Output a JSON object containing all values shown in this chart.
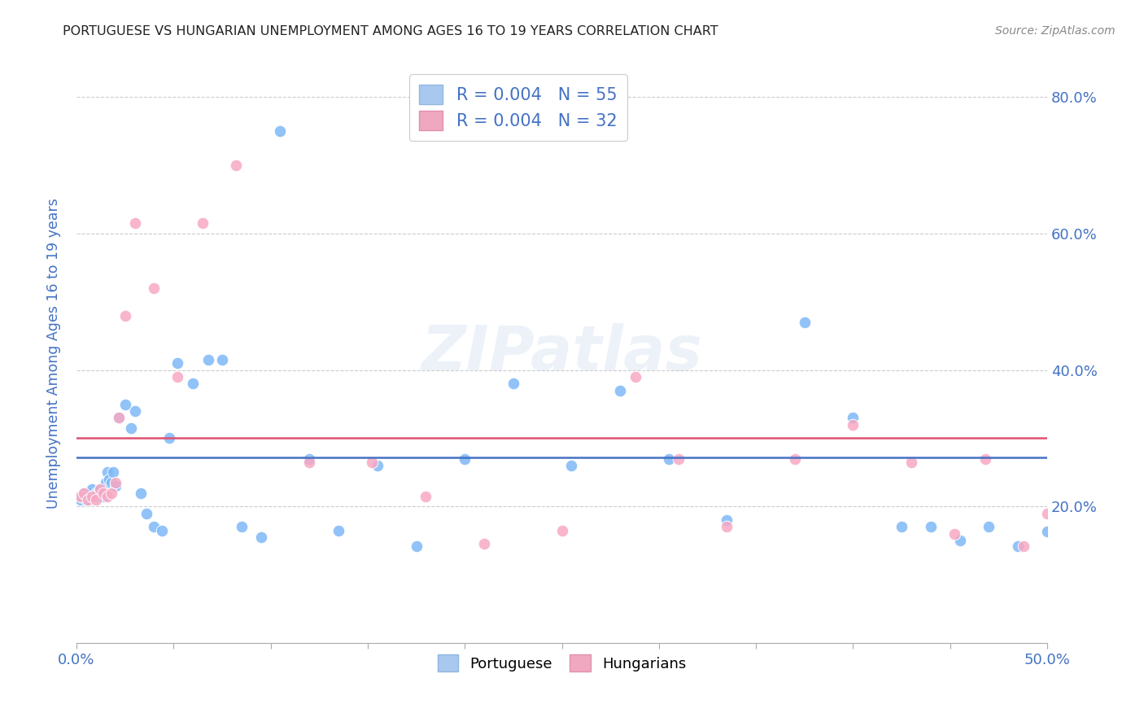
{
  "title": "PORTUGUESE VS HUNGARIAN UNEMPLOYMENT AMONG AGES 16 TO 19 YEARS CORRELATION CHART",
  "source": "Source: ZipAtlas.com",
  "ylabel": "Unemployment Among Ages 16 to 19 years",
  "xlim": [
    0.0,
    0.5
  ],
  "ylim": [
    0.0,
    0.85
  ],
  "legend_label1": "R = 0.004   N = 55",
  "legend_label2": "R = 0.004   N = 32",
  "legend_color1": "#a8c8f0",
  "legend_color2": "#f0a8c0",
  "dot_color_portuguese": "#7eb8f7",
  "dot_color_hungarian": "#f7a8c4",
  "line_color_portuguese": "#4472c4",
  "line_color_hungarian": "#e05070",
  "background_color": "#ffffff",
  "grid_color": "#cccccc",
  "title_color": "#222222",
  "source_color": "#888888",
  "axis_label_color": "#4472c4",
  "port_line_y": 0.272,
  "hung_line_y": 0.3,
  "portuguese_x": [
    0.002,
    0.003,
    0.004,
    0.005,
    0.006,
    0.007,
    0.008,
    0.008,
    0.009,
    0.01,
    0.01,
    0.011,
    0.012,
    0.013,
    0.014,
    0.015,
    0.016,
    0.017,
    0.018,
    0.019,
    0.02,
    0.022,
    0.025,
    0.028,
    0.03,
    0.033,
    0.036,
    0.04,
    0.044,
    0.048,
    0.052,
    0.06,
    0.068,
    0.075,
    0.085,
    0.095,
    0.105,
    0.12,
    0.135,
    0.155,
    0.175,
    0.2,
    0.225,
    0.255,
    0.28,
    0.305,
    0.335,
    0.375,
    0.4,
    0.425,
    0.44,
    0.455,
    0.47,
    0.485,
    0.5
  ],
  "portuguese_y": [
    0.21,
    0.215,
    0.22,
    0.21,
    0.215,
    0.22,
    0.215,
    0.225,
    0.215,
    0.22,
    0.215,
    0.22,
    0.225,
    0.22,
    0.215,
    0.235,
    0.25,
    0.24,
    0.235,
    0.25,
    0.23,
    0.33,
    0.35,
    0.315,
    0.34,
    0.22,
    0.19,
    0.17,
    0.165,
    0.3,
    0.41,
    0.38,
    0.415,
    0.415,
    0.17,
    0.155,
    0.75,
    0.27,
    0.165,
    0.26,
    0.142,
    0.27,
    0.38,
    0.26,
    0.37,
    0.27,
    0.18,
    0.47,
    0.33,
    0.17,
    0.17,
    0.15,
    0.17,
    0.142,
    0.163
  ],
  "hungarian_x": [
    0.002,
    0.004,
    0.006,
    0.008,
    0.01,
    0.012,
    0.014,
    0.016,
    0.018,
    0.02,
    0.022,
    0.025,
    0.03,
    0.04,
    0.052,
    0.065,
    0.082,
    0.12,
    0.152,
    0.18,
    0.21,
    0.25,
    0.288,
    0.31,
    0.335,
    0.37,
    0.4,
    0.43,
    0.452,
    0.468,
    0.488,
    0.5
  ],
  "hungarian_y": [
    0.215,
    0.22,
    0.21,
    0.215,
    0.21,
    0.225,
    0.22,
    0.215,
    0.22,
    0.235,
    0.33,
    0.48,
    0.615,
    0.52,
    0.39,
    0.615,
    0.7,
    0.265,
    0.265,
    0.215,
    0.145,
    0.165,
    0.39,
    0.27,
    0.17,
    0.27,
    0.32,
    0.265,
    0.16,
    0.27,
    0.142,
    0.19
  ],
  "watermark": "ZIPatlas"
}
